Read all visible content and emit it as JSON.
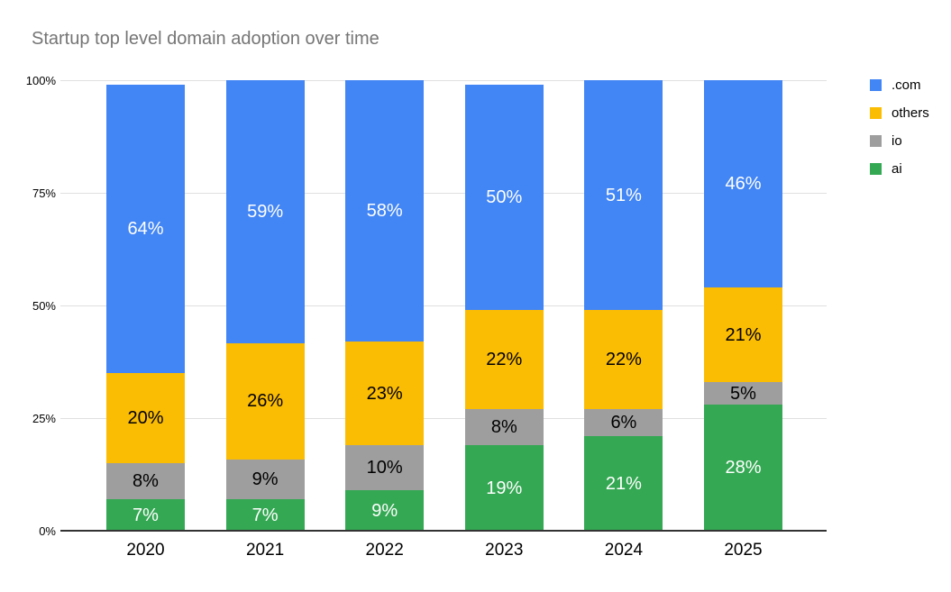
{
  "title": "Startup top level domain adoption over time",
  "colors": {
    "com_blue": "#4285F4",
    "others_yellow": "#FBBC04",
    "io_gray": "#9E9E9E",
    "ai_green": "#34A853",
    "title_text": "#757575",
    "grid_line": "#E0E0E0",
    "axis_line": "#333333",
    "label_on_dark": "#FFFFFF",
    "label_on_light": "#000000"
  },
  "y_axis": {
    "tick_labels": [
      "0%",
      "25%",
      "50%",
      "75%",
      "100%"
    ]
  },
  "legend": {
    "position": "right",
    "items": [
      {
        "label": ".com",
        "color": "#4285F4"
      },
      {
        "label": "others",
        "color": "#FBBC04"
      },
      {
        "label": "io",
        "color": "#9E9E9E"
      },
      {
        "label": "ai",
        "color": "#34A853"
      }
    ]
  },
  "chart_data": {
    "type": "bar",
    "stacked": true,
    "title": "Startup top level domain adoption over time",
    "xlabel": "",
    "ylabel": "",
    "ylim": [
      0,
      100
    ],
    "y_ticks_percent": [
      0,
      25,
      50,
      75,
      100
    ],
    "grid": true,
    "legend_position": "right",
    "value_suffix": "%",
    "categories": [
      "2020",
      "2021",
      "2022",
      "2023",
      "2024",
      "2025"
    ],
    "series": [
      {
        "name": "ai",
        "color": "#34A853",
        "label_color": "#FFFFFF",
        "values": [
          7,
          7,
          9,
          19,
          21,
          28
        ]
      },
      {
        "name": "io",
        "color": "#9E9E9E",
        "label_color": "#000000",
        "values": [
          8,
          9,
          10,
          8,
          6,
          5
        ]
      },
      {
        "name": "others",
        "color": "#FBBC04",
        "label_color": "#000000",
        "values": [
          20,
          26,
          23,
          22,
          22,
          21
        ]
      },
      {
        "name": ".com",
        "color": "#4285F4",
        "label_color": "#FFFFFF",
        "values": [
          64,
          59,
          58,
          50,
          51,
          46
        ]
      }
    ]
  }
}
